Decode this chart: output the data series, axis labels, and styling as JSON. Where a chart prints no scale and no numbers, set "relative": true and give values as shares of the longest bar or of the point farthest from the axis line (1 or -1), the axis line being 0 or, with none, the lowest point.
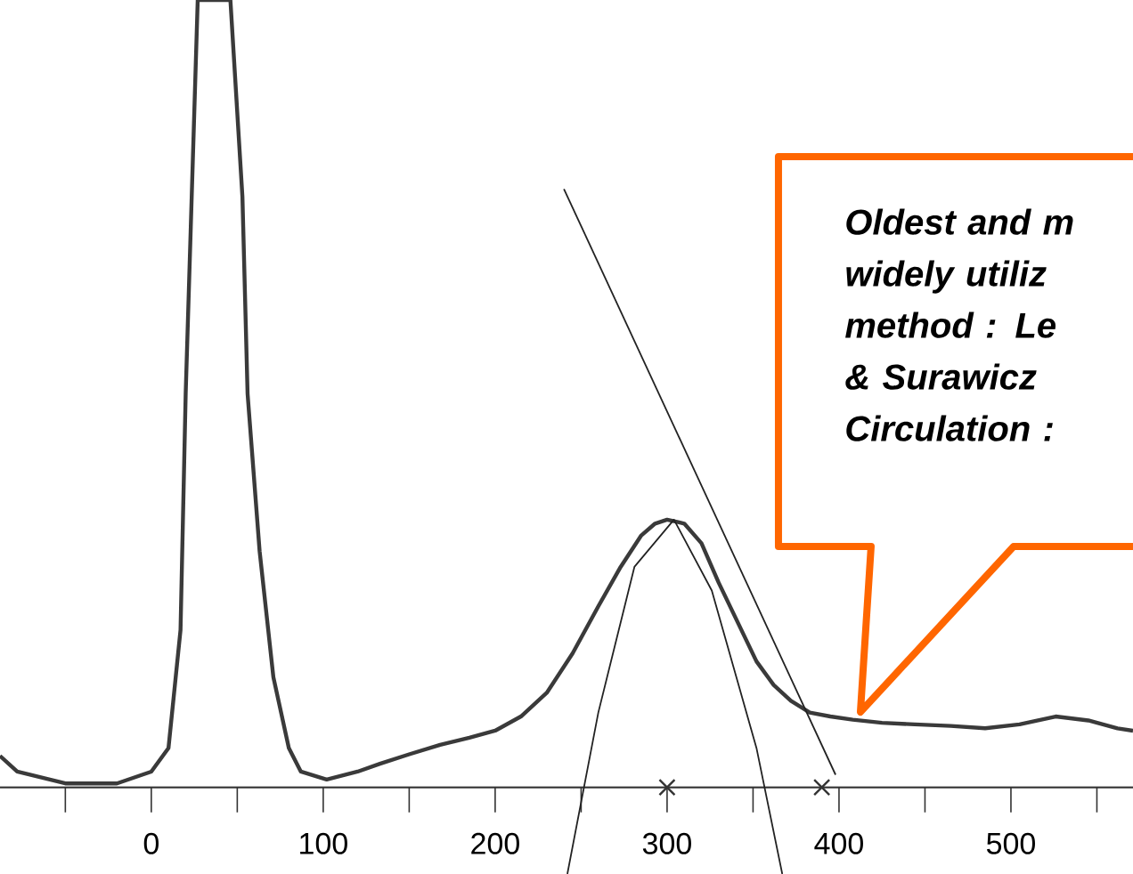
{
  "chart_data": {
    "type": "line",
    "relative": true,
    "xlim": [
      -88,
      571
    ],
    "xticks": [
      {
        "value": -50,
        "label": null
      },
      0,
      {
        "value": 50,
        "label": null
      },
      100,
      {
        "value": 150,
        "label": null
      },
      200,
      {
        "value": 250,
        "label": null
      },
      300,
      {
        "value": 350,
        "label": null
      },
      400,
      {
        "value": 450,
        "label": null
      },
      500,
      {
        "value": 550,
        "label": null
      }
    ],
    "series": [
      {
        "color": "#3a3a3a",
        "x": [
          -88,
          -78,
          -50,
          -20,
          0,
          10,
          17,
          20,
          27,
          46,
          53,
          56,
          63,
          71,
          80,
          87,
          102,
          120,
          133,
          150,
          168,
          185,
          200,
          215,
          230,
          245,
          260,
          273,
          285,
          293,
          300,
          310,
          320,
          330,
          341,
          352,
          362,
          372,
          383,
          395,
          408,
          425,
          444,
          465,
          485,
          505,
          526,
          545,
          562,
          571
        ],
        "values": [
          0.04,
          0.02,
          0.005,
          0.005,
          0.02,
          0.05,
          0.2,
          0.5,
          1,
          1,
          0.75,
          0.5,
          0.3,
          0.14,
          0.05,
          0.02,
          0.01,
          0.02,
          0.03,
          0.042,
          0.054,
          0.063,
          0.072,
          0.09,
          0.12,
          0.17,
          0.23,
          0.28,
          0.32,
          0.335,
          0.34,
          0.335,
          0.31,
          0.26,
          0.21,
          0.16,
          0.13,
          0.11,
          0.095,
          0.09,
          0.086,
          0.082,
          0.08,
          0.078,
          0.075,
          0.08,
          0.09,
          0.085,
          0.075,
          0.072
        ]
      },
      {
        "type": "line",
        "color": "#222222",
        "x": [
          240,
          398
        ],
        "values": [
          0.76,
          0.016
        ]
      },
      {
        "type": "line",
        "color": "#222222",
        "x": [
          242,
          260,
          281,
          304,
          326,
          352,
          367
        ],
        "values": [
          -0.11,
          0.095,
          0.28,
          0.34,
          0.25,
          0.05,
          -0.11
        ]
      },
      {
        "type": "scatter",
        "marker": "cross",
        "color": "#333333",
        "x": [
          300,
          390
        ],
        "values": [
          0,
          0
        ]
      }
    ],
    "annotations": [
      "Oldest and m widely utiliz method : Le & Surawicz Circulation :"
    ]
  }
}
